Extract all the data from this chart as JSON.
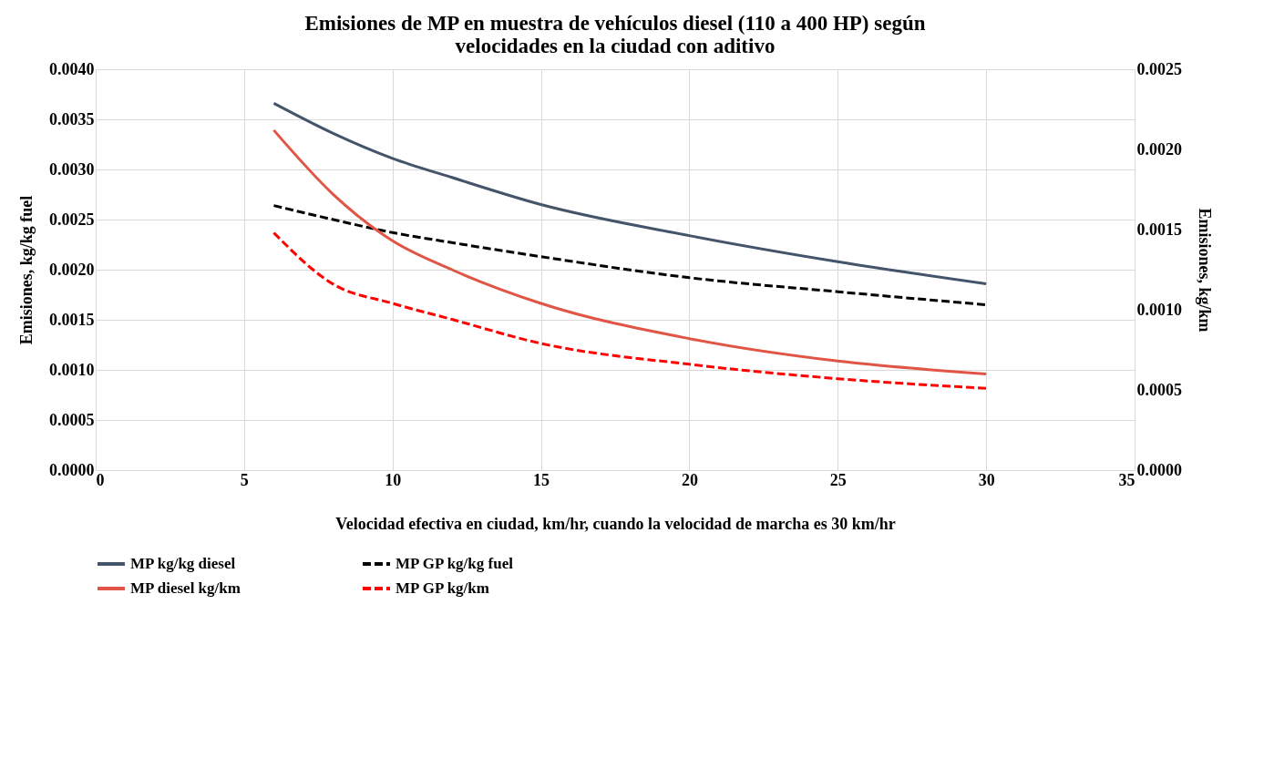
{
  "chart_data": {
    "type": "line",
    "title": [
      "Emisiones de MP en muestra de vehículos diesel (110 a 400 HP) según",
      "velocidades en la ciudad con aditivo"
    ],
    "xlabel": "Velocidad efectiva en ciudad, km/hr, cuando la velocidad de marcha es 30 km/hr",
    "ylabel": "Emisiones,  kg/kg fuel",
    "y2label": "Emisiones,  kg/km",
    "x": [
      6,
      8,
      10,
      12,
      15,
      20,
      25,
      30
    ],
    "xlim": [
      0,
      35
    ],
    "xticks": [
      0,
      5,
      10,
      15,
      20,
      25,
      30,
      35
    ],
    "ylim": [
      0,
      0.004
    ],
    "yticks": [
      {
        "value": 0,
        "label": "0.0000"
      },
      {
        "value": 0.0005,
        "label": "0.0005"
      },
      {
        "value": 0.001,
        "label": "0.0010"
      },
      {
        "value": 0.0015,
        "label": "0.0015"
      },
      {
        "value": 0.002,
        "label": "0.0020"
      },
      {
        "value": 0.0025,
        "label": "0.0025"
      },
      {
        "value": 0.003,
        "label": "0.0030"
      },
      {
        "value": 0.0035,
        "label": "0.0035"
      },
      {
        "value": 0.004,
        "label": "0.0040"
      }
    ],
    "y2lim": [
      0,
      0.0025
    ],
    "y2ticks": [
      {
        "value": 0,
        "label": "0.0000"
      },
      {
        "value": 0.0005,
        "label": "0.0005"
      },
      {
        "value": 0.001,
        "label": "0.0010"
      },
      {
        "value": 0.0015,
        "label": "0.0015"
      },
      {
        "value": 0.002,
        "label": "0.0020"
      },
      {
        "value": 0.0025,
        "label": "0.0025"
      }
    ],
    "grid": true,
    "legend": "bottom",
    "marker": "none",
    "series": [
      {
        "name": "MP kg/kg diesel",
        "color": "#44546a",
        "line_style": "solid",
        "values": [
          0.00366,
          0.00336,
          0.00311,
          0.00292,
          0.00265,
          0.00234,
          0.00208,
          0.00186
        ]
      },
      {
        "name": "MP GP  kg/kg fuel",
        "color": "#000000",
        "line_style": "dashed",
        "values": [
          0.00264,
          0.0025,
          0.00237,
          0.00227,
          0.00213,
          0.00192,
          0.00178,
          0.00165
        ]
      },
      {
        "name": "MP diesel  kg/km",
        "color": "#e05545",
        "line_style": "solid",
        "axis": "y2",
        "values": [
          0.00212,
          0.00172,
          0.00143,
          0.00125,
          0.00104,
          0.00082,
          0.00068,
          0.0006
        ]
      },
      {
        "name": "MP GP  kg/km",
        "color": "#ff0000",
        "line_style": "dashed",
        "axis": "y2",
        "values": [
          0.00148,
          0.00116,
          0.00104,
          0.00094,
          0.00079,
          0.00066,
          0.00057,
          0.00051
        ]
      }
    ]
  }
}
